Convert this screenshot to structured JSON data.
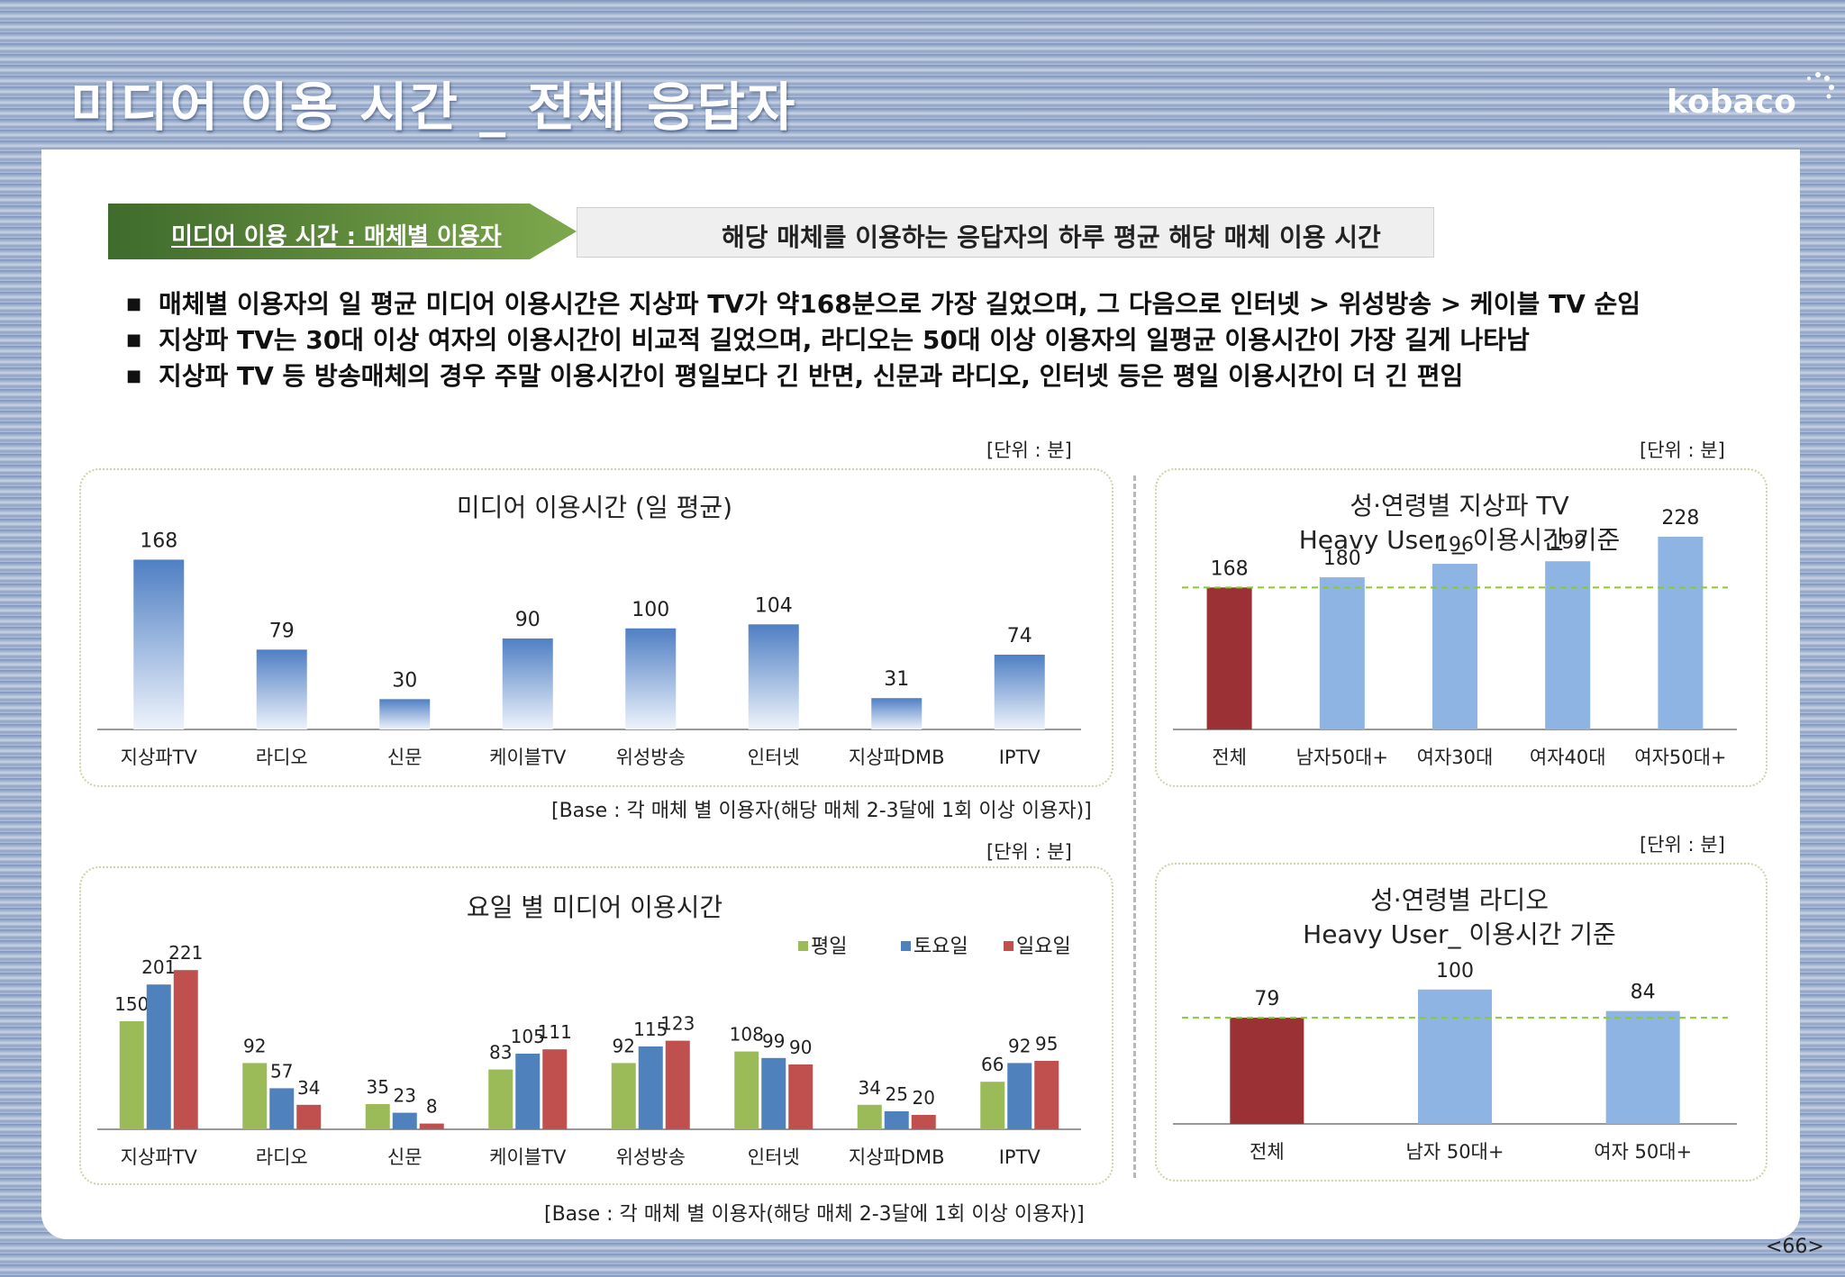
{
  "slide": {
    "title": "미디어 이용 시간 _ 전체 응답자",
    "logo": "kobaco",
    "page_number": "<66>"
  },
  "banner": {
    "left_label": "미디어 이용 시간 : 매체별 이용자",
    "right_label": "해당 매체를 이용하는 응답자의 하루 평균 해당 매체 이용 시간"
  },
  "bullets": [
    "매체별 이용자의 일 평균 미디어 이용시간은 지상파 TV가 약168분으로 가장 길었으며, 그 다음으로 인터넷 > 위성방송 > 케이블 TV 순임",
    "지상파 TV는 30대 이상 여자의 이용시간이 비교적 길었으며, 라디오는 50대 이상 이용자의 일평균 이용시간이 가장 길게 나타남",
    "지상파 TV 등 방송매체의 경우 주말 이용시간이 평일보다 긴 반면, 신문과 라디오, 인터넷 등은 평일 이용시간이 더 긴 편임"
  ],
  "unit_label": "[단위 : 분]",
  "base_note_1": "[Base : 각 매체 별 이용자(해당 매체 2-3달에 1회 이상 이용자)]",
  "base_note_2": "[Base : 각 매체 별 이용자(해당 매체 2-3달에 1회 이상 이용자)]",
  "colors": {
    "blue_bar": "#4f7fc4",
    "green": "#9bbb59",
    "blue": "#4f81bd",
    "red": "#c0504d",
    "dark_red": "#9b3035",
    "light_blue": "#8db4e2",
    "dash_green": "#8cc63f"
  },
  "chart_data": [
    {
      "id": "daily",
      "type": "bar",
      "title": "미디어 이용시간 (일 평균)",
      "categories": [
        "지상파TV",
        "라디오",
        "신문",
        "케이블TV",
        "위성방송",
        "인터넷",
        "지상파DMB",
        "IPTV"
      ],
      "values": [
        168,
        79,
        30,
        90,
        100,
        104,
        31,
        74
      ],
      "ylim": [
        0,
        180
      ]
    },
    {
      "id": "tv_heavy",
      "type": "bar",
      "title": "성·연령별 지상파 TV",
      "subtitle": "Heavy User _ 이용시간 기준",
      "categories": [
        "전체",
        "남자50대+",
        "여자30대",
        "여자40대",
        "여자50대+"
      ],
      "values": [
        168,
        180,
        196,
        199,
        228
      ],
      "reference_line": 168,
      "ylim": [
        0,
        260
      ]
    },
    {
      "id": "weekday",
      "type": "bar",
      "title": "요일 별 미디어 이용시간",
      "categories": [
        "지상파TV",
        "라디오",
        "신문",
        "케이블TV",
        "위성방송",
        "인터넷",
        "지상파DMB",
        "IPTV"
      ],
      "series": [
        {
          "name": "평일",
          "values": [
            150,
            92,
            35,
            83,
            92,
            108,
            34,
            66
          ]
        },
        {
          "name": "토요일",
          "values": [
            201,
            57,
            23,
            105,
            115,
            99,
            25,
            92
          ]
        },
        {
          "name": "일요일",
          "values": [
            221,
            34,
            8,
            111,
            123,
            90,
            20,
            95
          ]
        }
      ],
      "legend": "top-right",
      "ylim": [
        0,
        240
      ]
    },
    {
      "id": "radio_heavy",
      "type": "bar",
      "title": "성·연령별 라디오",
      "subtitle": "Heavy User_ 이용시간 기준",
      "categories": [
        "전체",
        "남자 50대+",
        "여자 50대+"
      ],
      "values": [
        79,
        100,
        84
      ],
      "reference_line": 79,
      "ylim": [
        0,
        130
      ]
    }
  ]
}
